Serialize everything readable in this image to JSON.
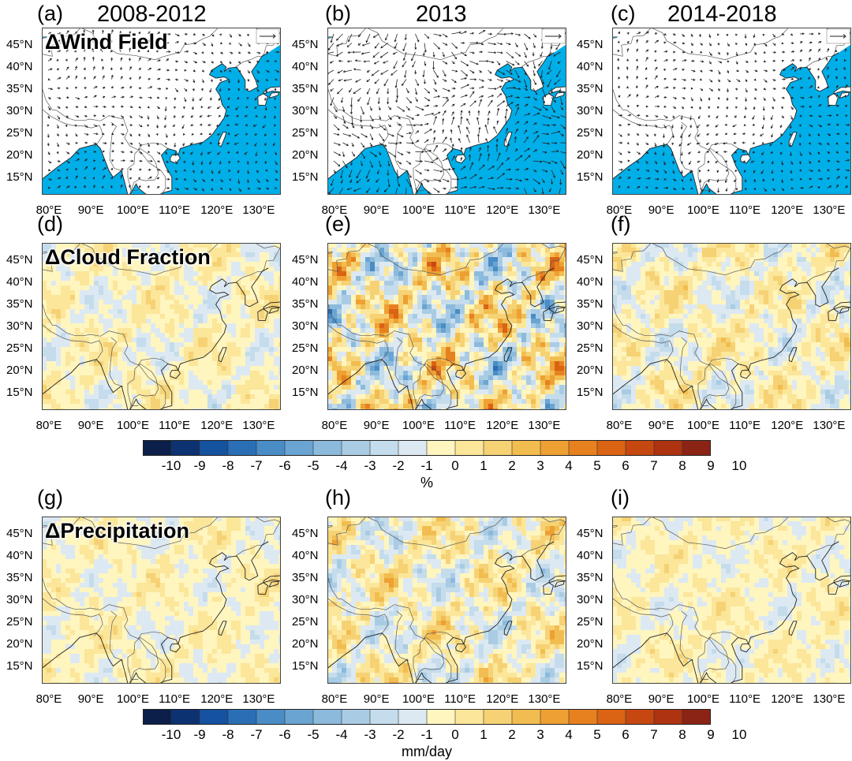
{
  "figure": {
    "period_titles": [
      "2008-2012",
      "2013",
      "2014-2018"
    ],
    "panel_labels": [
      "(a)",
      "(b)",
      "(c)",
      "(d)",
      "(e)",
      "(f)",
      "(g)",
      "(h)",
      "(i)"
    ],
    "row_titles": [
      "ΔWind Field",
      "ΔCloud Fraction",
      "ΔPrecipitation"
    ],
    "lat_ticks": [
      "45°N",
      "40°N",
      "35°N",
      "30°N",
      "25°N",
      "20°N",
      "15°N"
    ],
    "lon_ticks": [
      "80°E",
      "90°E",
      "100°E",
      "110°E",
      "120°E",
      "130°E"
    ]
  },
  "colorbars": [
    {
      "labels": [
        "-10",
        "-9",
        "-8",
        "-7",
        "-6",
        "-5",
        "-4",
        "-3",
        "-2",
        "-1",
        "0",
        "1",
        "2",
        "3",
        "4",
        "5",
        "6",
        "7",
        "8",
        "9",
        "10"
      ],
      "unit": "%"
    },
    {
      "labels": [
        "-10",
        "-9",
        "-8",
        "-7",
        "-6",
        "-5",
        "-4",
        "-3",
        "-2",
        "-1",
        "0",
        "1",
        "2",
        "3",
        "4",
        "5",
        "6",
        "7",
        "8",
        "9",
        "10"
      ],
      "unit": "mm/day"
    }
  ],
  "colors": {
    "ocean": "#00aee8",
    "land": "#ffffff",
    "coast": "#5a5a5a",
    "colorbar": [
      "#0b1f4a",
      "#0d3272",
      "#1552a0",
      "#2a6fb5",
      "#4a8cc6",
      "#6aa4d2",
      "#8bbadc",
      "#a9cce4",
      "#c4dcec",
      "#dde9f2",
      "#fff5bf",
      "#fbe69a",
      "#f6d275",
      "#f2bd50",
      "#eea033",
      "#e7811f",
      "#da6314",
      "#c74710",
      "#ae3310",
      "#8b2414"
    ]
  }
}
